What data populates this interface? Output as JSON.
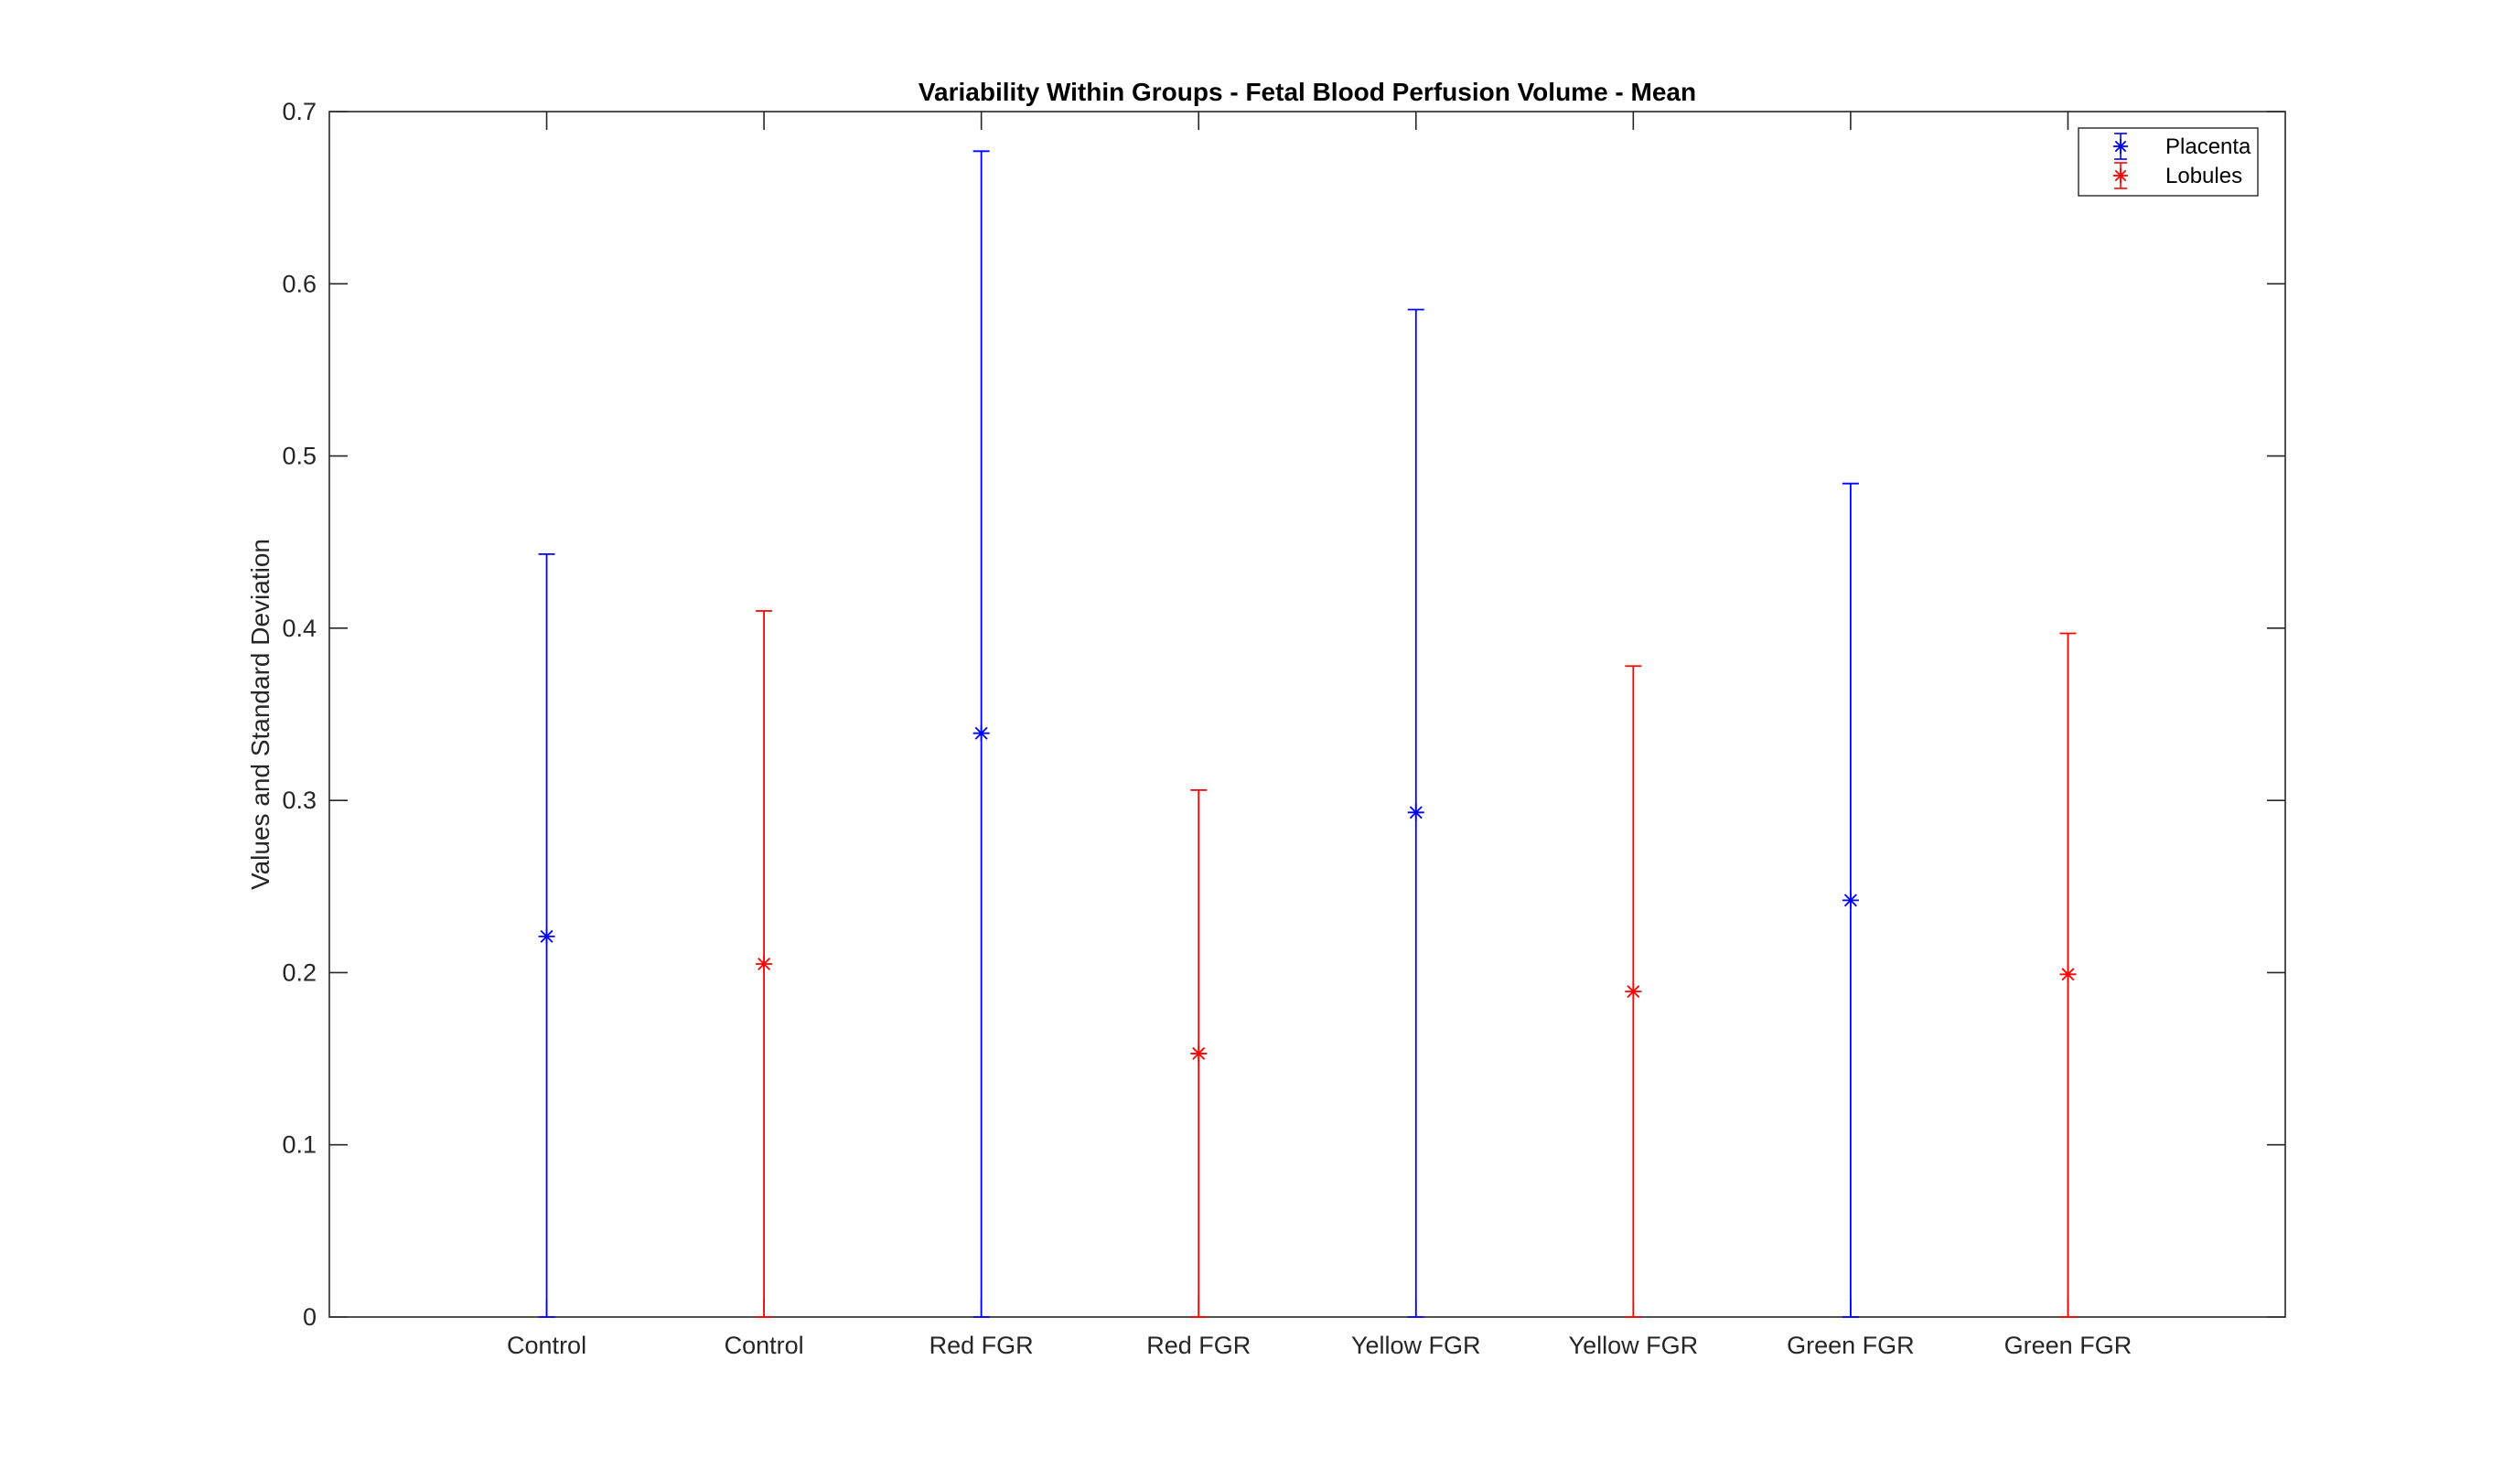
{
  "chart_data": {
    "type": "scatter",
    "title": "Variability Within Groups - Fetal Blood Perfusion Volume - Mean",
    "xlabel": "",
    "ylabel": "Values and Standard Deviation",
    "ylim": [
      0,
      0.7
    ],
    "yticks": [
      "0",
      "0.1",
      "0.2",
      "0.3",
      "0.4",
      "0.5",
      "0.6",
      "0.7"
    ],
    "xlim": [
      0,
      9
    ],
    "categories": [
      "Control",
      "Control",
      "Red FGR",
      "Red FGR",
      "Yellow FGR",
      "Yellow FGR",
      "Green FGR",
      "Green FGR"
    ],
    "grid": false,
    "legend_position": "top-right",
    "marker": "asterisk",
    "series": [
      {
        "name": "Placenta",
        "color": "#0000ff",
        "x": [
          1,
          3,
          5,
          7
        ],
        "values": [
          0.221,
          0.339,
          0.293,
          0.242
        ],
        "error_lower": [
          0,
          0,
          0,
          0
        ],
        "error_upper": [
          0.443,
          0.677,
          0.585,
          0.484
        ]
      },
      {
        "name": "Lobules",
        "color": "#ff0000",
        "x": [
          2,
          4,
          6,
          8
        ],
        "values": [
          0.205,
          0.153,
          0.189,
          0.199
        ],
        "error_lower": [
          0,
          0,
          0,
          0
        ],
        "error_upper": [
          0.41,
          0.306,
          0.378,
          0.397
        ]
      }
    ]
  }
}
